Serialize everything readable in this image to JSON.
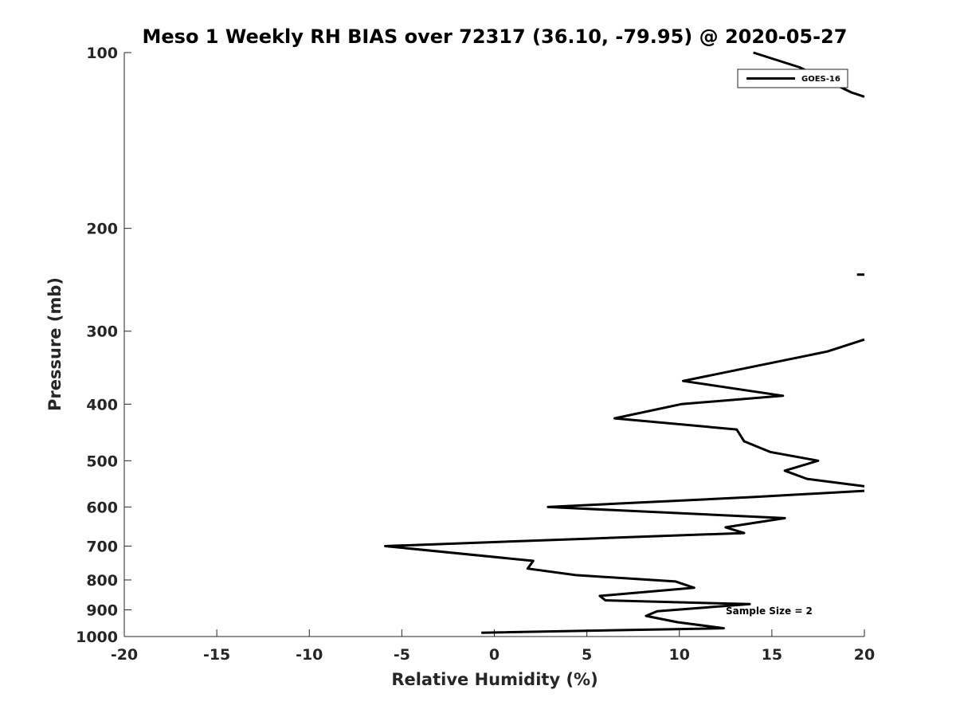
{
  "chart_data": {
    "type": "line",
    "title": "Meso 1 Weekly RH BIAS over 72317 (36.10, -79.95) @ 2020-05-27",
    "xlabel": "Relative Humidity (%)",
    "ylabel": "Pressure (mb)",
    "xlim": [
      -20,
      20
    ],
    "ylim": [
      100,
      1000
    ],
    "y_scale": "log",
    "y_reversed": true,
    "x_ticks": [
      "-20",
      "-15",
      "-10",
      "-5",
      "0",
      "5",
      "10",
      "15",
      "20"
    ],
    "y_ticks": [
      "100",
      "200",
      "300",
      "400",
      "500",
      "600",
      "700",
      "800",
      "900",
      "1000"
    ],
    "grid": false,
    "legend_position": "top-right",
    "annotation": "Sample Size = 2",
    "series": [
      {
        "name": "GOES-16",
        "color": "#000000",
        "segments": [
          [
            {
              "x": 14.0,
              "y": 100
            },
            {
              "x": 16.5,
              "y": 106
            },
            {
              "x": 19.3,
              "y": 117
            },
            {
              "x": 20.0,
              "y": 119
            }
          ],
          [
            {
              "x": 19.6,
              "y": 240
            },
            {
              "x": 20.0,
              "y": 240
            }
          ],
          [
            {
              "x": 20.0,
              "y": 310
            },
            {
              "x": 18.0,
              "y": 325
            },
            {
              "x": 14.0,
              "y": 345
            },
            {
              "x": 10.2,
              "y": 365
            },
            {
              "x": 15.6,
              "y": 387
            },
            {
              "x": 10.1,
              "y": 400
            },
            {
              "x": 6.5,
              "y": 423
            },
            {
              "x": 13.1,
              "y": 442
            },
            {
              "x": 13.5,
              "y": 463
            },
            {
              "x": 14.9,
              "y": 483
            },
            {
              "x": 17.5,
              "y": 500
            },
            {
              "x": 15.7,
              "y": 520
            },
            {
              "x": 16.9,
              "y": 537
            },
            {
              "x": 20.0,
              "y": 553
            }
          ],
          [
            {
              "x": 20.0,
              "y": 563
            },
            {
              "x": 14.0,
              "y": 577
            },
            {
              "x": 2.9,
              "y": 600
            },
            {
              "x": 15.7,
              "y": 627
            },
            {
              "x": 12.5,
              "y": 650
            },
            {
              "x": 13.5,
              "y": 665
            },
            {
              "x": 5.0,
              "y": 680
            },
            {
              "x": -5.9,
              "y": 700
            },
            {
              "x": 2.1,
              "y": 742
            },
            {
              "x": 1.8,
              "y": 765
            },
            {
              "x": 4.4,
              "y": 785
            },
            {
              "x": 9.8,
              "y": 805
            },
            {
              "x": 10.8,
              "y": 825
            },
            {
              "x": 5.7,
              "y": 852
            },
            {
              "x": 6.0,
              "y": 867
            },
            {
              "x": 13.8,
              "y": 880
            },
            {
              "x": 8.8,
              "y": 905
            },
            {
              "x": 8.2,
              "y": 922
            },
            {
              "x": 9.9,
              "y": 945
            },
            {
              "x": 12.4,
              "y": 968
            },
            {
              "x": -0.7,
              "y": 985
            }
          ]
        ]
      }
    ]
  },
  "colors": {
    "background": "#ffffff",
    "axis": "#262626",
    "series": "#000000"
  }
}
